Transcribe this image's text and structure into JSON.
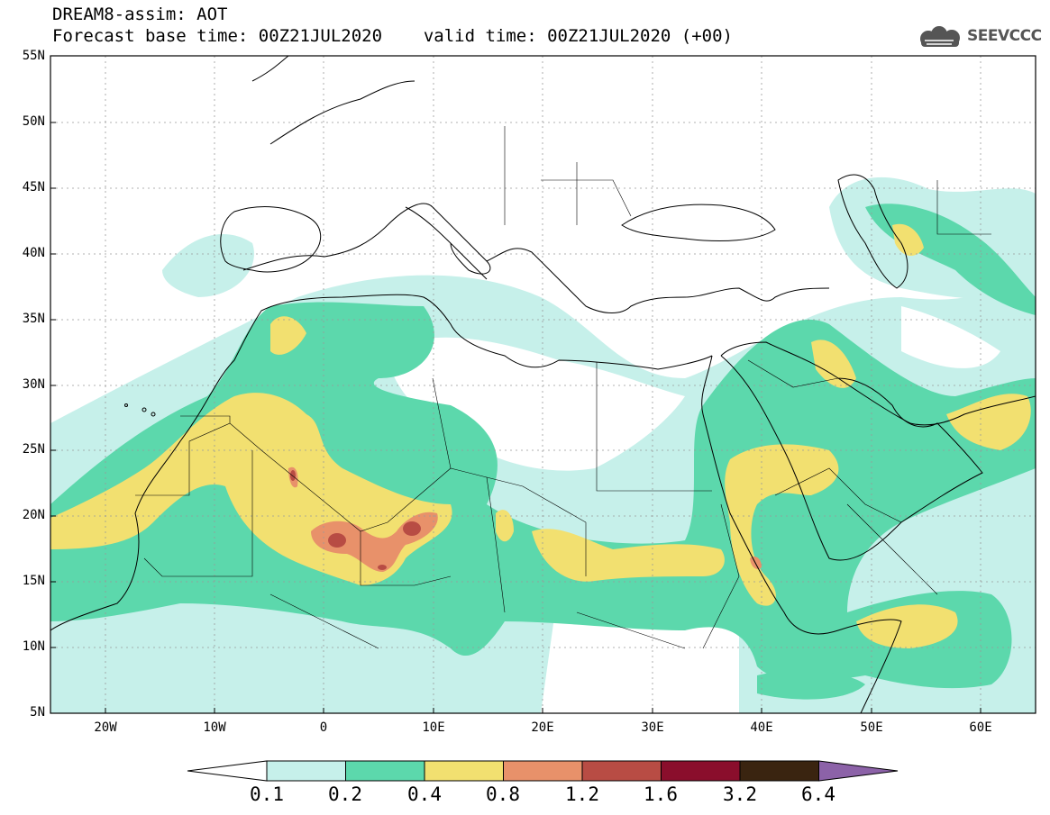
{
  "header": {
    "title": "DREAM8-assim: AOT",
    "base_time_line": "Forecast base time: 00Z21JUL2020",
    "valid_time_line": "valid time: 00Z21JUL2020 (+00)",
    "logo_text": "SEEVCCC"
  },
  "map": {
    "lat_labels": [
      "55N",
      "50N",
      "45N",
      "40N",
      "35N",
      "30N",
      "25N",
      "20N",
      "15N",
      "10N",
      "5N"
    ],
    "lon_labels": [
      "20W",
      "10W",
      "0",
      "10E",
      "20E",
      "30E",
      "40E",
      "50E",
      "60E"
    ],
    "lon_range": [
      -25,
      65
    ],
    "lat_range": [
      5,
      55
    ]
  },
  "colorbar": {
    "labels": [
      "0.1",
      "0.2",
      "0.4",
      "0.8",
      "1.2",
      "1.6",
      "3.2",
      "6.4"
    ],
    "colors": [
      "#c6f0ea",
      "#5cd8ac",
      "#f2e070",
      "#e8916a",
      "#b84c44",
      "#8a0e2c",
      "#3a2410",
      "#8c62a8"
    ]
  },
  "colors": {
    "land_line": "#000000",
    "grid": "#999999"
  }
}
